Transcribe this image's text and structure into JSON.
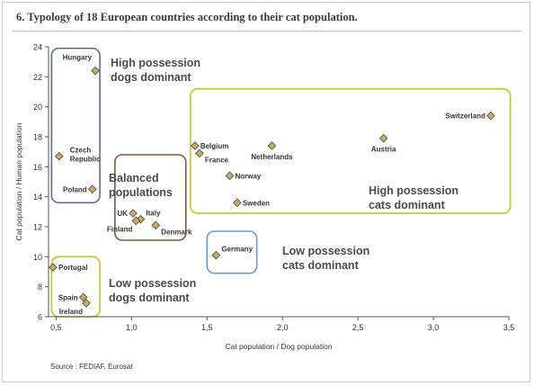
{
  "title": "6. Typology of 18 European countries according to their cat population.",
  "source": "Source : FEDIAF, Eurosat",
  "colors": {
    "marker_fill": "#c9ad63",
    "marker_stroke": "#444444",
    "group_blue": "#5b6f8f",
    "group_light_blue": "#6b9ac4",
    "group_brown": "#7a5a3c",
    "group_olive": "#c8c83c",
    "group_label": "#4a4a4a"
  },
  "chart_data": {
    "type": "scatter",
    "xlabel": "Cat population / Dog population",
    "ylabel": "Cat population / Human population",
    "xlim": [
      0.45,
      3.5
    ],
    "ylim": [
      6,
      24
    ],
    "xticks": [
      0.5,
      1.0,
      1.5,
      2.0,
      2.5,
      3.0,
      3.5
    ],
    "xtick_labels": [
      "0,5",
      "1,0",
      "1,5",
      "2,0",
      "2,5",
      "3,0",
      "3,5"
    ],
    "yticks": [
      6,
      8,
      10,
      12,
      14,
      16,
      18,
      20,
      22,
      24
    ],
    "ytick_labels": [
      "6",
      "8",
      "10",
      "12",
      "14",
      "16",
      "18",
      "20",
      "22",
      "24"
    ],
    "grid": false,
    "points": [
      {
        "label": "Hungary",
        "x": 0.76,
        "y": 22.4,
        "label_pos": "upper-left"
      },
      {
        "label": "Czech Republic",
        "x": 0.52,
        "y": 16.7,
        "label_pos": "right-two-line"
      },
      {
        "label": "Poland",
        "x": 0.74,
        "y": 14.5,
        "label_pos": "left"
      },
      {
        "label": "UK",
        "x": 1.01,
        "y": 12.9,
        "label_pos": "left"
      },
      {
        "label": "Italy",
        "x": 1.06,
        "y": 12.5,
        "label_pos": "upper-right"
      },
      {
        "label": "Finland",
        "x": 1.03,
        "y": 12.4,
        "label_pos": "lower-left"
      },
      {
        "label": "Denmark",
        "x": 1.16,
        "y": 12.1,
        "label_pos": "lower-right"
      },
      {
        "label": "Belgium",
        "x": 1.42,
        "y": 17.4,
        "label_pos": "right"
      },
      {
        "label": "France",
        "x": 1.45,
        "y": 16.9,
        "label_pos": "lower-right"
      },
      {
        "label": "Norway",
        "x": 1.65,
        "y": 15.4,
        "label_pos": "right"
      },
      {
        "label": "Sweden",
        "x": 1.7,
        "y": 13.6,
        "label_pos": "right"
      },
      {
        "label": "Netherlands",
        "x": 1.93,
        "y": 17.4,
        "label_pos": "below"
      },
      {
        "label": "Austria",
        "x": 2.67,
        "y": 17.9,
        "label_pos": "below"
      },
      {
        "label": "Switzerland",
        "x": 3.38,
        "y": 19.4,
        "label_pos": "left"
      },
      {
        "label": "Germany",
        "x": 1.56,
        "y": 10.1,
        "label_pos": "upper-right"
      },
      {
        "label": "Portugal",
        "x": 0.48,
        "y": 9.3,
        "label_pos": "right"
      },
      {
        "label": "Spain",
        "x": 0.68,
        "y": 7.3,
        "label_pos": "left"
      },
      {
        "label": "Ireland",
        "x": 0.7,
        "y": 6.9,
        "label_pos": "lower-left"
      }
    ],
    "groups": [
      {
        "name": "High possession dogs dominant",
        "lines": [
          "High possession",
          "dogs dominant"
        ],
        "color_key": "group_blue"
      },
      {
        "name": "Balanced populations",
        "lines": [
          "Balanced",
          "populations"
        ],
        "color_key": "group_brown"
      },
      {
        "name": "High possession cats dominant",
        "lines": [
          "High possession",
          "cats dominant"
        ],
        "color_key": "group_olive"
      },
      {
        "name": "Low possession cats dominant",
        "lines": [
          "Low possession",
          "cats dominant"
        ],
        "color_key": "group_light_blue"
      },
      {
        "name": "Low possession dogs dominant",
        "lines": [
          "Low possession",
          "dogs dominant"
        ],
        "color_key": "group_olive"
      }
    ]
  }
}
